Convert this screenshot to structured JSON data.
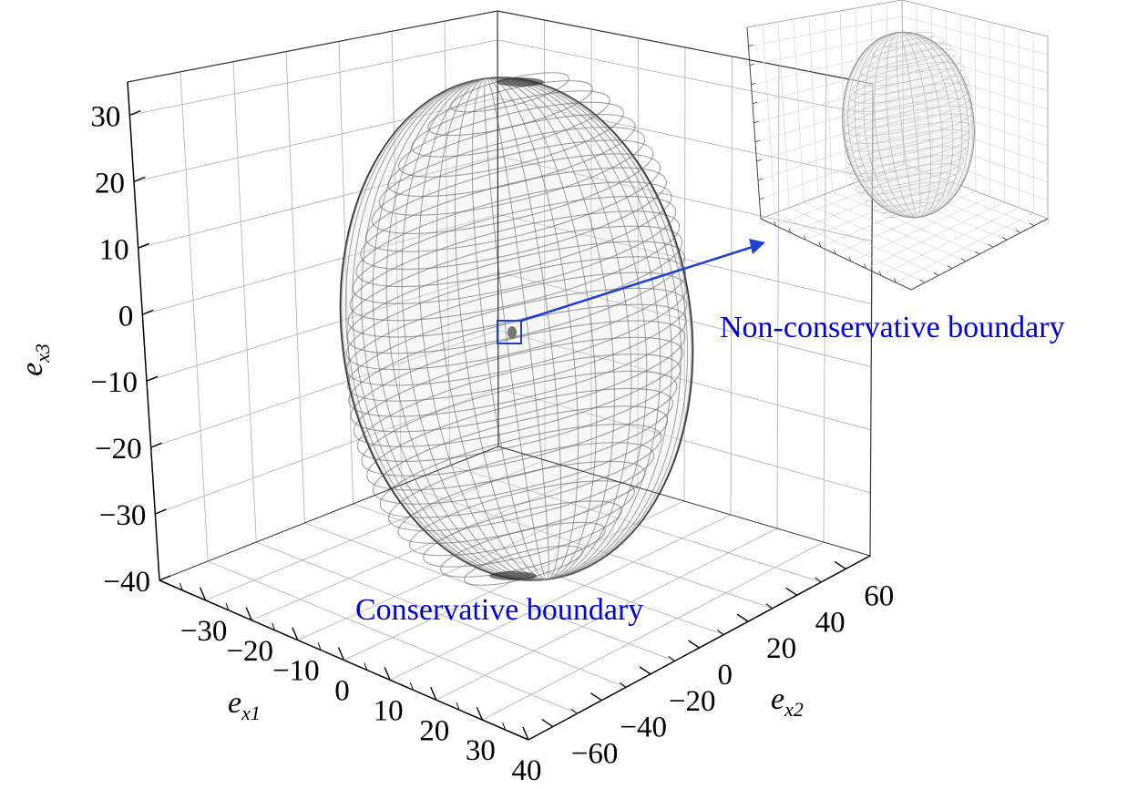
{
  "chart_data": [
    {
      "type": "surface-3d",
      "surface": "ellipsoid",
      "xlabel": "e",
      "xlabel_sub": "x1",
      "ylabel": "e",
      "ylabel_sub": "x2",
      "zlabel": "e",
      "zlabel_sub": "x3",
      "x_ticks": [
        "−30",
        "−20",
        "−10",
        "0",
        "10",
        "20",
        "30",
        "40"
      ],
      "y_ticks": [
        "−60",
        "−40",
        "−20",
        "0",
        "20",
        "40",
        "60"
      ],
      "z_ticks": [
        "−40",
        "−30",
        "−20",
        "−10",
        "0",
        "10",
        "20",
        "30"
      ],
      "xlim": [
        -40,
        40
      ],
      "ylim": [
        -70,
        70
      ],
      "zlim": [
        -40,
        35
      ],
      "grid": true,
      "ellipsoid_semi_axes": {
        "x": 30,
        "y": 52,
        "z": 36
      },
      "ellipsoid_center": [
        0,
        0,
        0
      ],
      "annotations": [
        {
          "text": "Conservative boundary",
          "color": "#0000dd"
        },
        {
          "text": "Non-conservative boundary",
          "color": "#0000dd"
        }
      ],
      "highlight_box_color": "#1f3fd0",
      "arrow_color": "#1f3fd0",
      "surface_color": "#555555"
    },
    {
      "type": "surface-3d",
      "surface": "ellipsoid",
      "role": "inset zoom of the small inner boundary",
      "grid": true,
      "surface_color": "#888888"
    }
  ]
}
